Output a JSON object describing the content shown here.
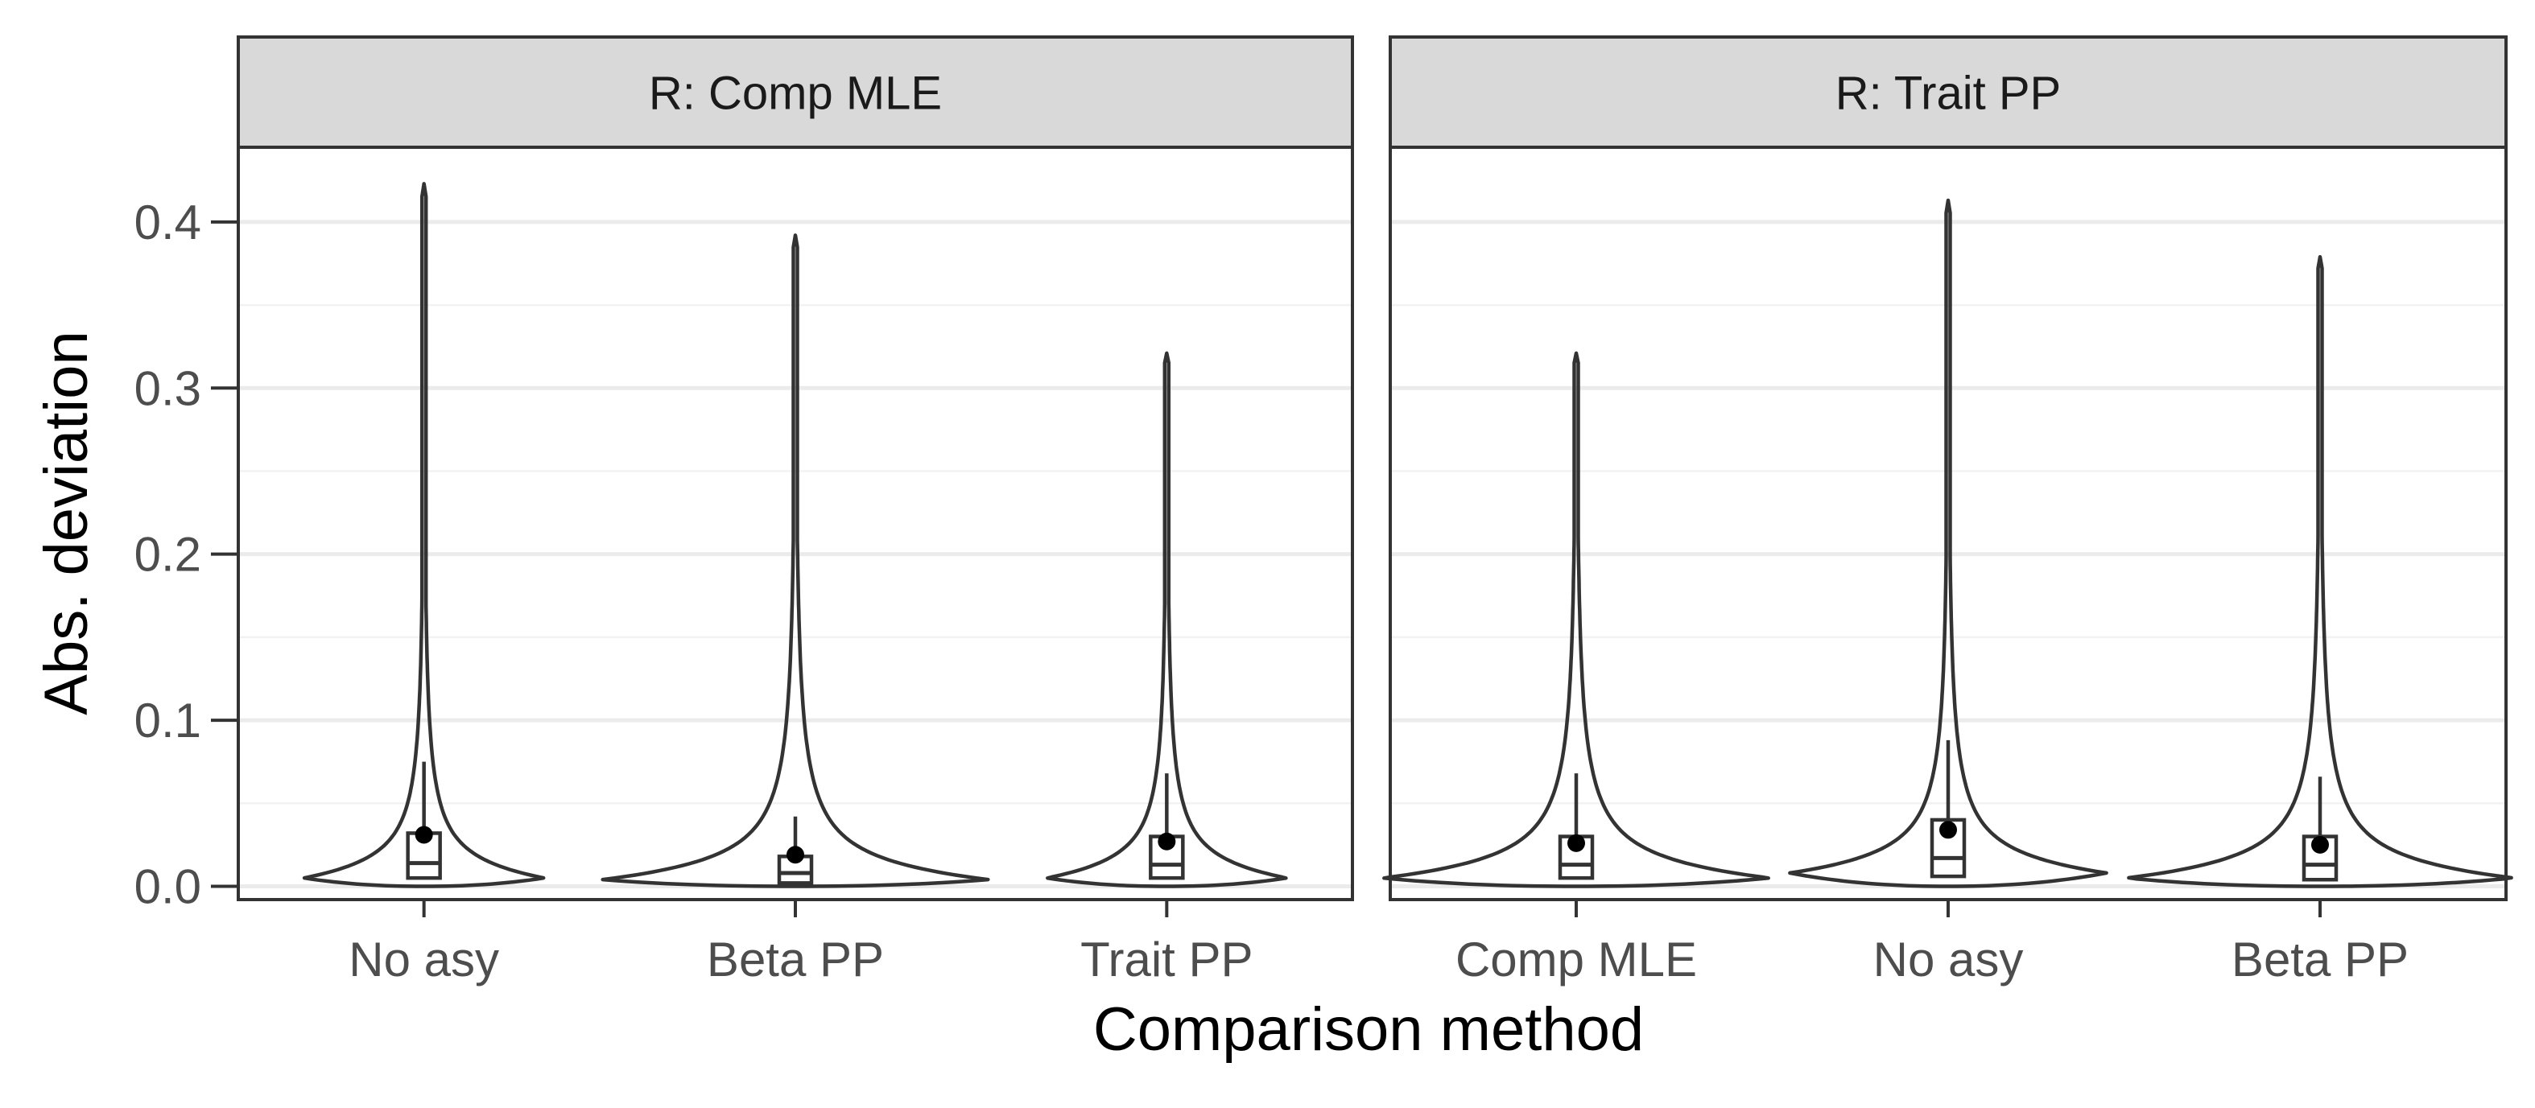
{
  "chart_data": {
    "type": "violin",
    "xlabel": "Comparison method",
    "ylabel": "Abs. deviation",
    "ylim": [
      -0.008,
      0.445
    ],
    "yticks": [
      0.0,
      0.1,
      0.2,
      0.3,
      0.4
    ],
    "ytick_labels": [
      "0.0",
      "0.1",
      "0.2",
      "0.3",
      "0.4"
    ],
    "grid": true,
    "legend": "none",
    "colors": {
      "outline": "#333333",
      "strip_fill": "#d9d9d9",
      "grid_major": "#ebebeb",
      "point": "#000000"
    },
    "panels": [
      {
        "strip": "R: Comp MLE",
        "categories": [
          {
            "label": "No asy",
            "max": 0.423,
            "mean": 0.031,
            "q1": 0.005,
            "median": 0.014,
            "q3": 0.032,
            "whisker_high": 0.075,
            "mode": 0.005,
            "width": 0.62
          },
          {
            "label": "Beta PP",
            "max": 0.392,
            "mean": 0.019,
            "q1": 0.002,
            "median": 0.008,
            "q3": 0.018,
            "whisker_high": 0.042,
            "mode": 0.004,
            "width": 1.0
          },
          {
            "label": "Trait PP",
            "max": 0.321,
            "mean": 0.027,
            "q1": 0.005,
            "median": 0.013,
            "q3": 0.03,
            "whisker_high": 0.068,
            "mode": 0.005,
            "width": 0.62
          }
        ]
      },
      {
        "strip": "R: Trait PP",
        "categories": [
          {
            "label": "Comp MLE",
            "max": 0.321,
            "mean": 0.026,
            "q1": 0.005,
            "median": 0.013,
            "q3": 0.03,
            "whisker_high": 0.068,
            "mode": 0.005,
            "width": 1.0
          },
          {
            "label": "No asy",
            "max": 0.413,
            "mean": 0.034,
            "q1": 0.006,
            "median": 0.017,
            "q3": 0.04,
            "whisker_high": 0.088,
            "mode": 0.008,
            "width": 0.82
          },
          {
            "label": "Beta PP",
            "max": 0.379,
            "mean": 0.025,
            "q1": 0.004,
            "median": 0.013,
            "q3": 0.03,
            "whisker_high": 0.066,
            "mode": 0.005,
            "width": 1.0
          }
        ]
      }
    ]
  }
}
